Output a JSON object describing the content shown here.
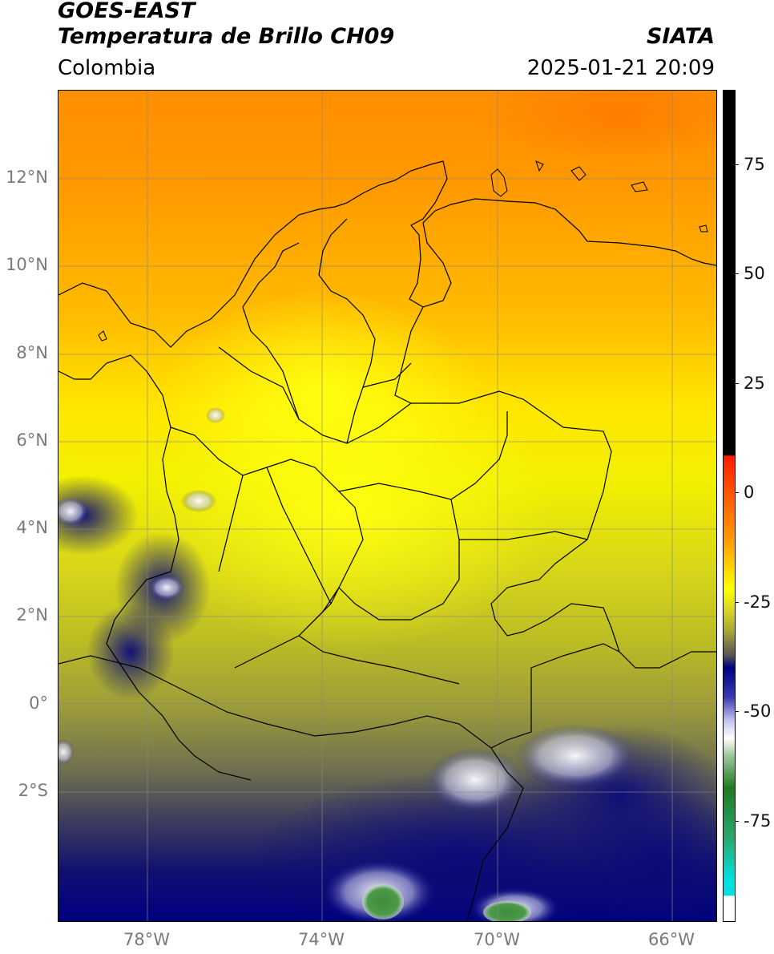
{
  "header": {
    "satellite": "GOES-EAST",
    "product": "Temperatura de Brillo CH09",
    "region": "Colombia",
    "organization": "SIATA",
    "datetime": "2025-01-21 20:09"
  },
  "map": {
    "lat_ticks": [
      "12°N",
      "10°N",
      "8°N",
      "6°N",
      "4°N",
      "2°N",
      "0°",
      "2°S"
    ],
    "lon_ticks": [
      "78°W",
      "74°W",
      "70°W",
      "66°W"
    ],
    "gridlines": true
  },
  "colorbar": {
    "ticks": [
      "75",
      "50",
      "25",
      "0",
      "-25",
      "-50",
      "-75"
    ],
    "colors": {
      "black": "#000000",
      "red": "#e31a10",
      "orange": "#ff8c00",
      "yellow": "#ffff00",
      "olive": "#aaaa22",
      "gray": "#555555",
      "navy": "#000080",
      "white": "#ffffff",
      "green": "#3c8c3c",
      "cyan": "#00e0e0"
    }
  }
}
